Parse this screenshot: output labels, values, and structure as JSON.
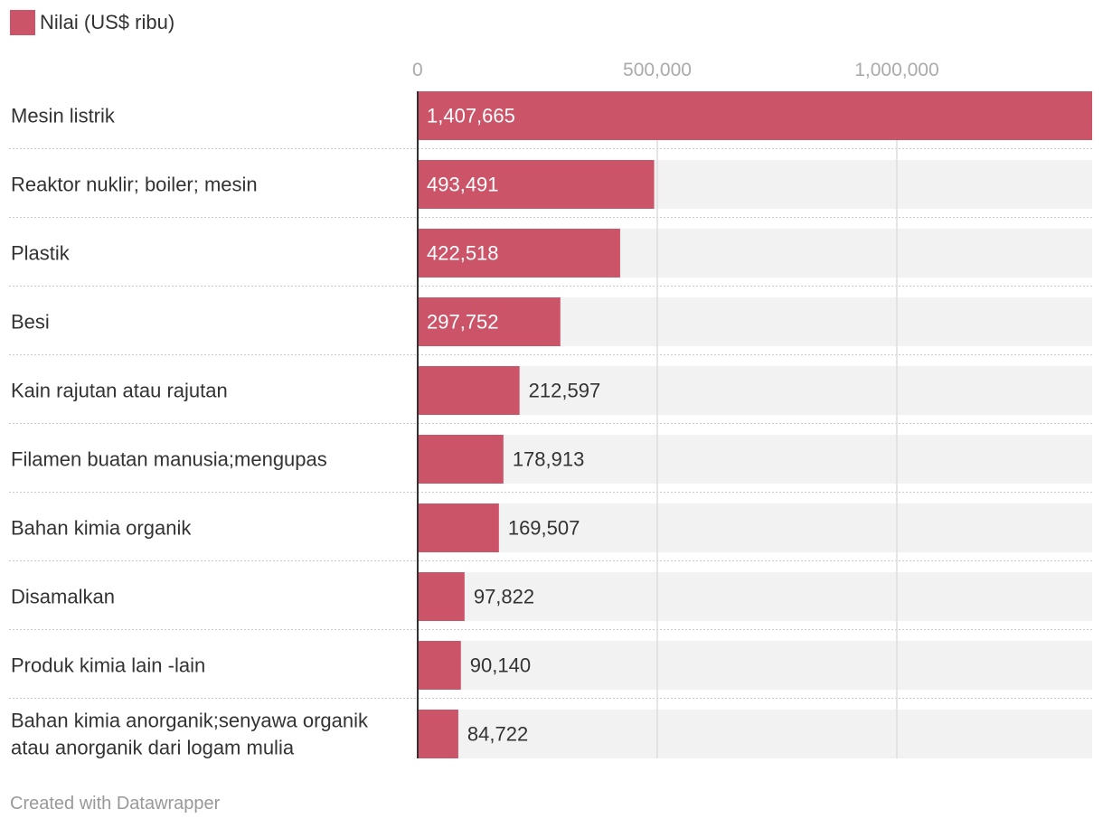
{
  "legend": {
    "label": "Nilai (US$ ribu)",
    "color": "#cc5468"
  },
  "footer": {
    "credit": "Created with Datawrapper"
  },
  "colors": {
    "bar": "#cc5468",
    "bar_track": "#f2f2f2",
    "gridline": "#dddddd",
    "separator": "#cccccc",
    "axis_line": "#333333",
    "tick_text": "#aaaaaa",
    "label_text": "#333333",
    "value_inside": "#ffffff",
    "value_outside": "#333333"
  },
  "chart_data": {
    "type": "bar",
    "orientation": "horizontal",
    "title": "",
    "xlabel": "",
    "ylabel": "",
    "xlim": [
      0,
      1407665
    ],
    "ticks": [
      {
        "value": 0,
        "label": "0"
      },
      {
        "value": 500000,
        "label": "500,000"
      },
      {
        "value": 1000000,
        "label": "1,000,000"
      }
    ],
    "series": [
      {
        "name": "Nilai (US$ ribu)",
        "values": [
          1407665,
          493491,
          422518,
          297752,
          212597,
          178913,
          169507,
          97822,
          90140,
          84722
        ]
      }
    ],
    "categories": [
      {
        "label_lines": [
          "Mesin listrik"
        ]
      },
      {
        "label_lines": [
          "Reaktor nuklir; boiler; mesin"
        ]
      },
      {
        "label_lines": [
          "Plastik"
        ]
      },
      {
        "label_lines": [
          "Besi"
        ]
      },
      {
        "label_lines": [
          "Kain rajutan atau rajutan"
        ]
      },
      {
        "label_lines": [
          "Filamen buatan manusia;mengupas"
        ]
      },
      {
        "label_lines": [
          "Bahan kimia organik"
        ]
      },
      {
        "label_lines": [
          "Disamalkan"
        ]
      },
      {
        "label_lines": [
          "Produk kimia lain -lain"
        ]
      },
      {
        "label_lines": [
          "Bahan kimia anorganik;senyawa organik",
          "atau anorganik dari logam mulia"
        ]
      }
    ],
    "value_labels": [
      "1,407,665",
      "493,491",
      "422,518",
      "297,752",
      "212,597",
      "178,913",
      "169,507",
      "97,822",
      "90,140",
      "84,722"
    ]
  }
}
